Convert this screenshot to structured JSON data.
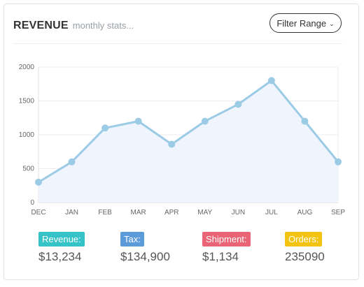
{
  "header": {
    "title": "REVENUE",
    "subtitle": "monthly stats...",
    "filter_label": "Filter Range"
  },
  "icons": {
    "filter_chevron": "chevron-down-icon"
  },
  "chart_data": {
    "type": "area",
    "categories": [
      "DEC",
      "JAN",
      "FEB",
      "MAR",
      "APR",
      "MAY",
      "JUN",
      "JUL",
      "AUG",
      "SEP"
    ],
    "values": [
      300,
      600,
      1100,
      1200,
      860,
      1200,
      1450,
      1800,
      1200,
      600
    ],
    "yticks": [
      0,
      500,
      1000,
      1500,
      2000
    ],
    "ylim": [
      0,
      2000
    ],
    "line_color": "#9ccbe6",
    "fill_color": "#f0f4fd",
    "grid": true
  },
  "stats": [
    {
      "label": "Revenue:",
      "value": "$13,234",
      "color": "#35c3c8"
    },
    {
      "label": "Tax:",
      "value": "$134,900",
      "color": "#5b9bd9"
    },
    {
      "label": "Shipment:",
      "value": "$1,134",
      "color": "#e96575"
    },
    {
      "label": "Orders:",
      "value": "235090",
      "color": "#f2c40f"
    }
  ]
}
